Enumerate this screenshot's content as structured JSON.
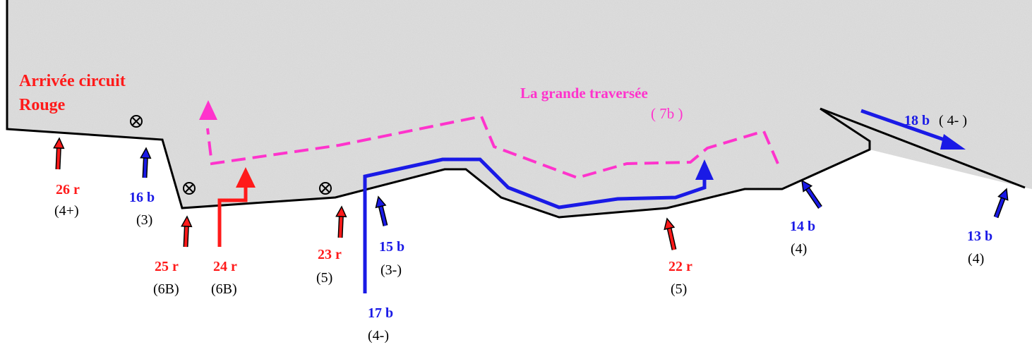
{
  "colors": {
    "red": "#ff1a1a",
    "blue": "#1a1ae6",
    "magenta": "#ff33cc",
    "rock": "#d9d9d9",
    "outline": "#000000"
  },
  "title": {
    "line1": "Arrivée circuit",
    "line2": "Rouge"
  },
  "traverse": {
    "name": "La grande traversée",
    "grade": "( 7b )"
  },
  "bolts": [
    {
      "icon": "bolt-icon"
    },
    {
      "icon": "bolt-icon"
    },
    {
      "icon": "bolt-icon"
    }
  ],
  "routes": [
    {
      "id": "26r",
      "name": "26 r",
      "grade": "(4+)",
      "color": "red"
    },
    {
      "id": "16b",
      "name": "16 b",
      "grade": "(3)",
      "color": "blue"
    },
    {
      "id": "25r",
      "name": "25 r",
      "grade": "(6B)",
      "color": "red"
    },
    {
      "id": "24r",
      "name": "24 r",
      "grade": "(6B)",
      "color": "red"
    },
    {
      "id": "23r",
      "name": "23 r",
      "grade": "(5)",
      "color": "red"
    },
    {
      "id": "15b",
      "name": "15 b",
      "grade": "(3-)",
      "color": "blue"
    },
    {
      "id": "17b",
      "name": "17 b",
      "grade": "(4-)",
      "color": "blue"
    },
    {
      "id": "22r",
      "name": "22 r",
      "grade": "(5)",
      "color": "red"
    },
    {
      "id": "14b",
      "name": "14 b",
      "grade": "(4)",
      "color": "blue"
    },
    {
      "id": "13b",
      "name": "13 b",
      "grade": "(4)",
      "color": "blue"
    },
    {
      "id": "18b",
      "name": "18 b",
      "grade": "( 4- )",
      "color": "blue"
    }
  ]
}
